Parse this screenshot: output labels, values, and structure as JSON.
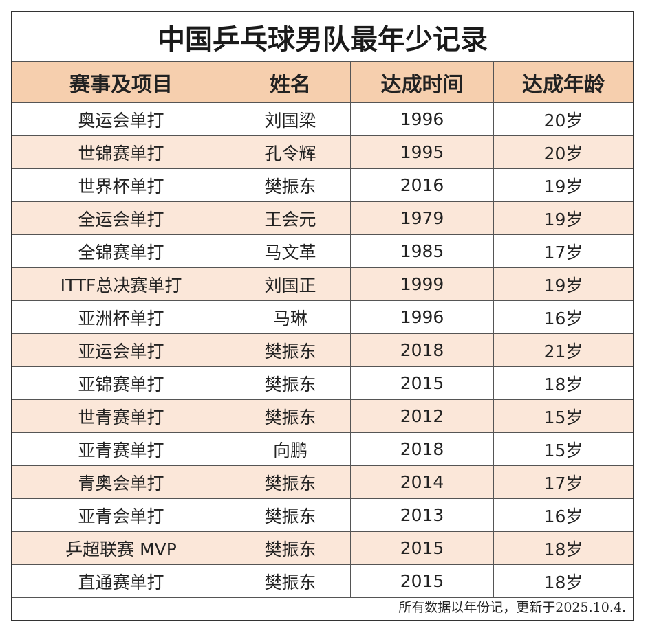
{
  "title": "中国乒乓球男队最年少记录",
  "table": {
    "header": [
      "赛事及项目",
      "姓名",
      "达成时间",
      "达成年龄"
    ],
    "rows": [
      [
        "奥运会单打",
        "刘国梁",
        "1996",
        "20岁"
      ],
      [
        "世锦赛单打",
        "孔令辉",
        "1995",
        "20岁"
      ],
      [
        "世界杯单打",
        "樊振东",
        "2016",
        "19岁"
      ],
      [
        "全运会单打",
        "王会元",
        "1979",
        "19岁"
      ],
      [
        "全锦赛单打",
        "马文革",
        "1985",
        "17岁"
      ],
      [
        "ITTF总决赛单打",
        "刘国正",
        "1999",
        "19岁"
      ],
      [
        "亚洲杯单打",
        "马琳",
        "1996",
        "16岁"
      ],
      [
        "亚运会单打",
        "樊振东",
        "2018",
        "21岁"
      ],
      [
        "亚锦赛单打",
        "樊振东",
        "2015",
        "18岁"
      ],
      [
        "世青赛单打",
        "樊振东",
        "2012",
        "15岁"
      ],
      [
        "亚青赛单打",
        "向鹏",
        "2018",
        "15岁"
      ],
      [
        "青奥会单打",
        "樊振东",
        "2014",
        "17岁"
      ],
      [
        "亚青会单打",
        "樊振东",
        "2013",
        "16岁"
      ],
      [
        "乒超联赛 MVP",
        "樊振东",
        "2015",
        "18岁"
      ],
      [
        "直通赛单打",
        "樊振东",
        "2015",
        "18岁"
      ]
    ]
  },
  "footnote": "所有数据以年份记，更新于2025.10.4."
}
